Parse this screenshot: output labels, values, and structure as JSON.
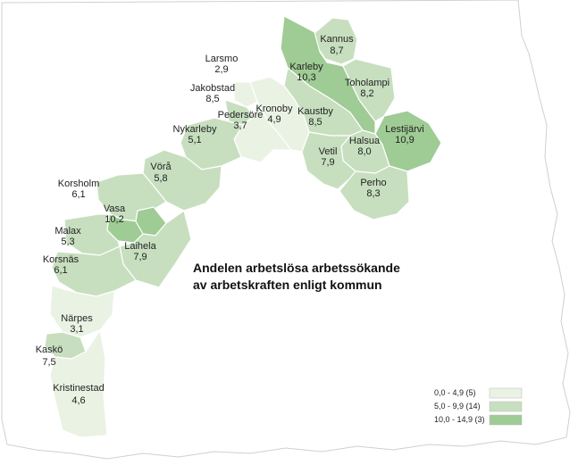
{
  "title_lines": [
    "Andelen arbetslösa arbetssökande",
    "av arbetskraften enligt kommun"
  ],
  "colors": {
    "low": "#eaf2e4",
    "mid": "#c7dfbf",
    "high": "#9fcb94",
    "border": "#ffffff",
    "paper": "#ffffff",
    "background": "#ffffff"
  },
  "legend": [
    {
      "label": "0,0 - 4,9 (5)",
      "class": "low"
    },
    {
      "label": "5,0 - 9,9 (14)",
      "class": "mid"
    },
    {
      "label": "10,0 - 14,9 (3)",
      "class": "high"
    }
  ],
  "municipalities": [
    {
      "name": "Kannus",
      "value": "8,7",
      "class": "mid"
    },
    {
      "name": "Larsmo",
      "value": "2,9",
      "class": "low"
    },
    {
      "name": "Karleby",
      "value": "10,3",
      "class": "high"
    },
    {
      "name": "Toholampi",
      "value": "8,2",
      "class": "mid"
    },
    {
      "name": "Jakobstad",
      "value": "8,5",
      "class": "mid"
    },
    {
      "name": "Kronoby",
      "value": "4,9",
      "class": "low"
    },
    {
      "name": "Kaustby",
      "value": "8,5",
      "class": "mid"
    },
    {
      "name": "Pedersöre",
      "value": "3,7",
      "class": "low"
    },
    {
      "name": "Lestijärvi",
      "value": "10,9",
      "class": "high"
    },
    {
      "name": "Nykarleby",
      "value": "5,1",
      "class": "mid"
    },
    {
      "name": "Halsua",
      "value": "8,0",
      "class": "mid"
    },
    {
      "name": "Vetil",
      "value": "7,9",
      "class": "mid"
    },
    {
      "name": "Vörå",
      "value": "5,8",
      "class": "mid"
    },
    {
      "name": "Perho",
      "value": "8,3",
      "class": "mid"
    },
    {
      "name": "Korsholm",
      "value": "6,1",
      "class": "mid"
    },
    {
      "name": "Vasa",
      "value": "10,2",
      "class": "high"
    },
    {
      "name": "Malax",
      "value": "5,3",
      "class": "mid"
    },
    {
      "name": "Laihela",
      "value": "7,9",
      "class": "mid"
    },
    {
      "name": "Korsnäs",
      "value": "6,1",
      "class": "mid"
    },
    {
      "name": "Närpes",
      "value": "3,1",
      "class": "low"
    },
    {
      "name": "Kaskö",
      "value": "7,5",
      "class": "mid"
    },
    {
      "name": "Kristinestad",
      "value": "4,6",
      "class": "low"
    }
  ]
}
